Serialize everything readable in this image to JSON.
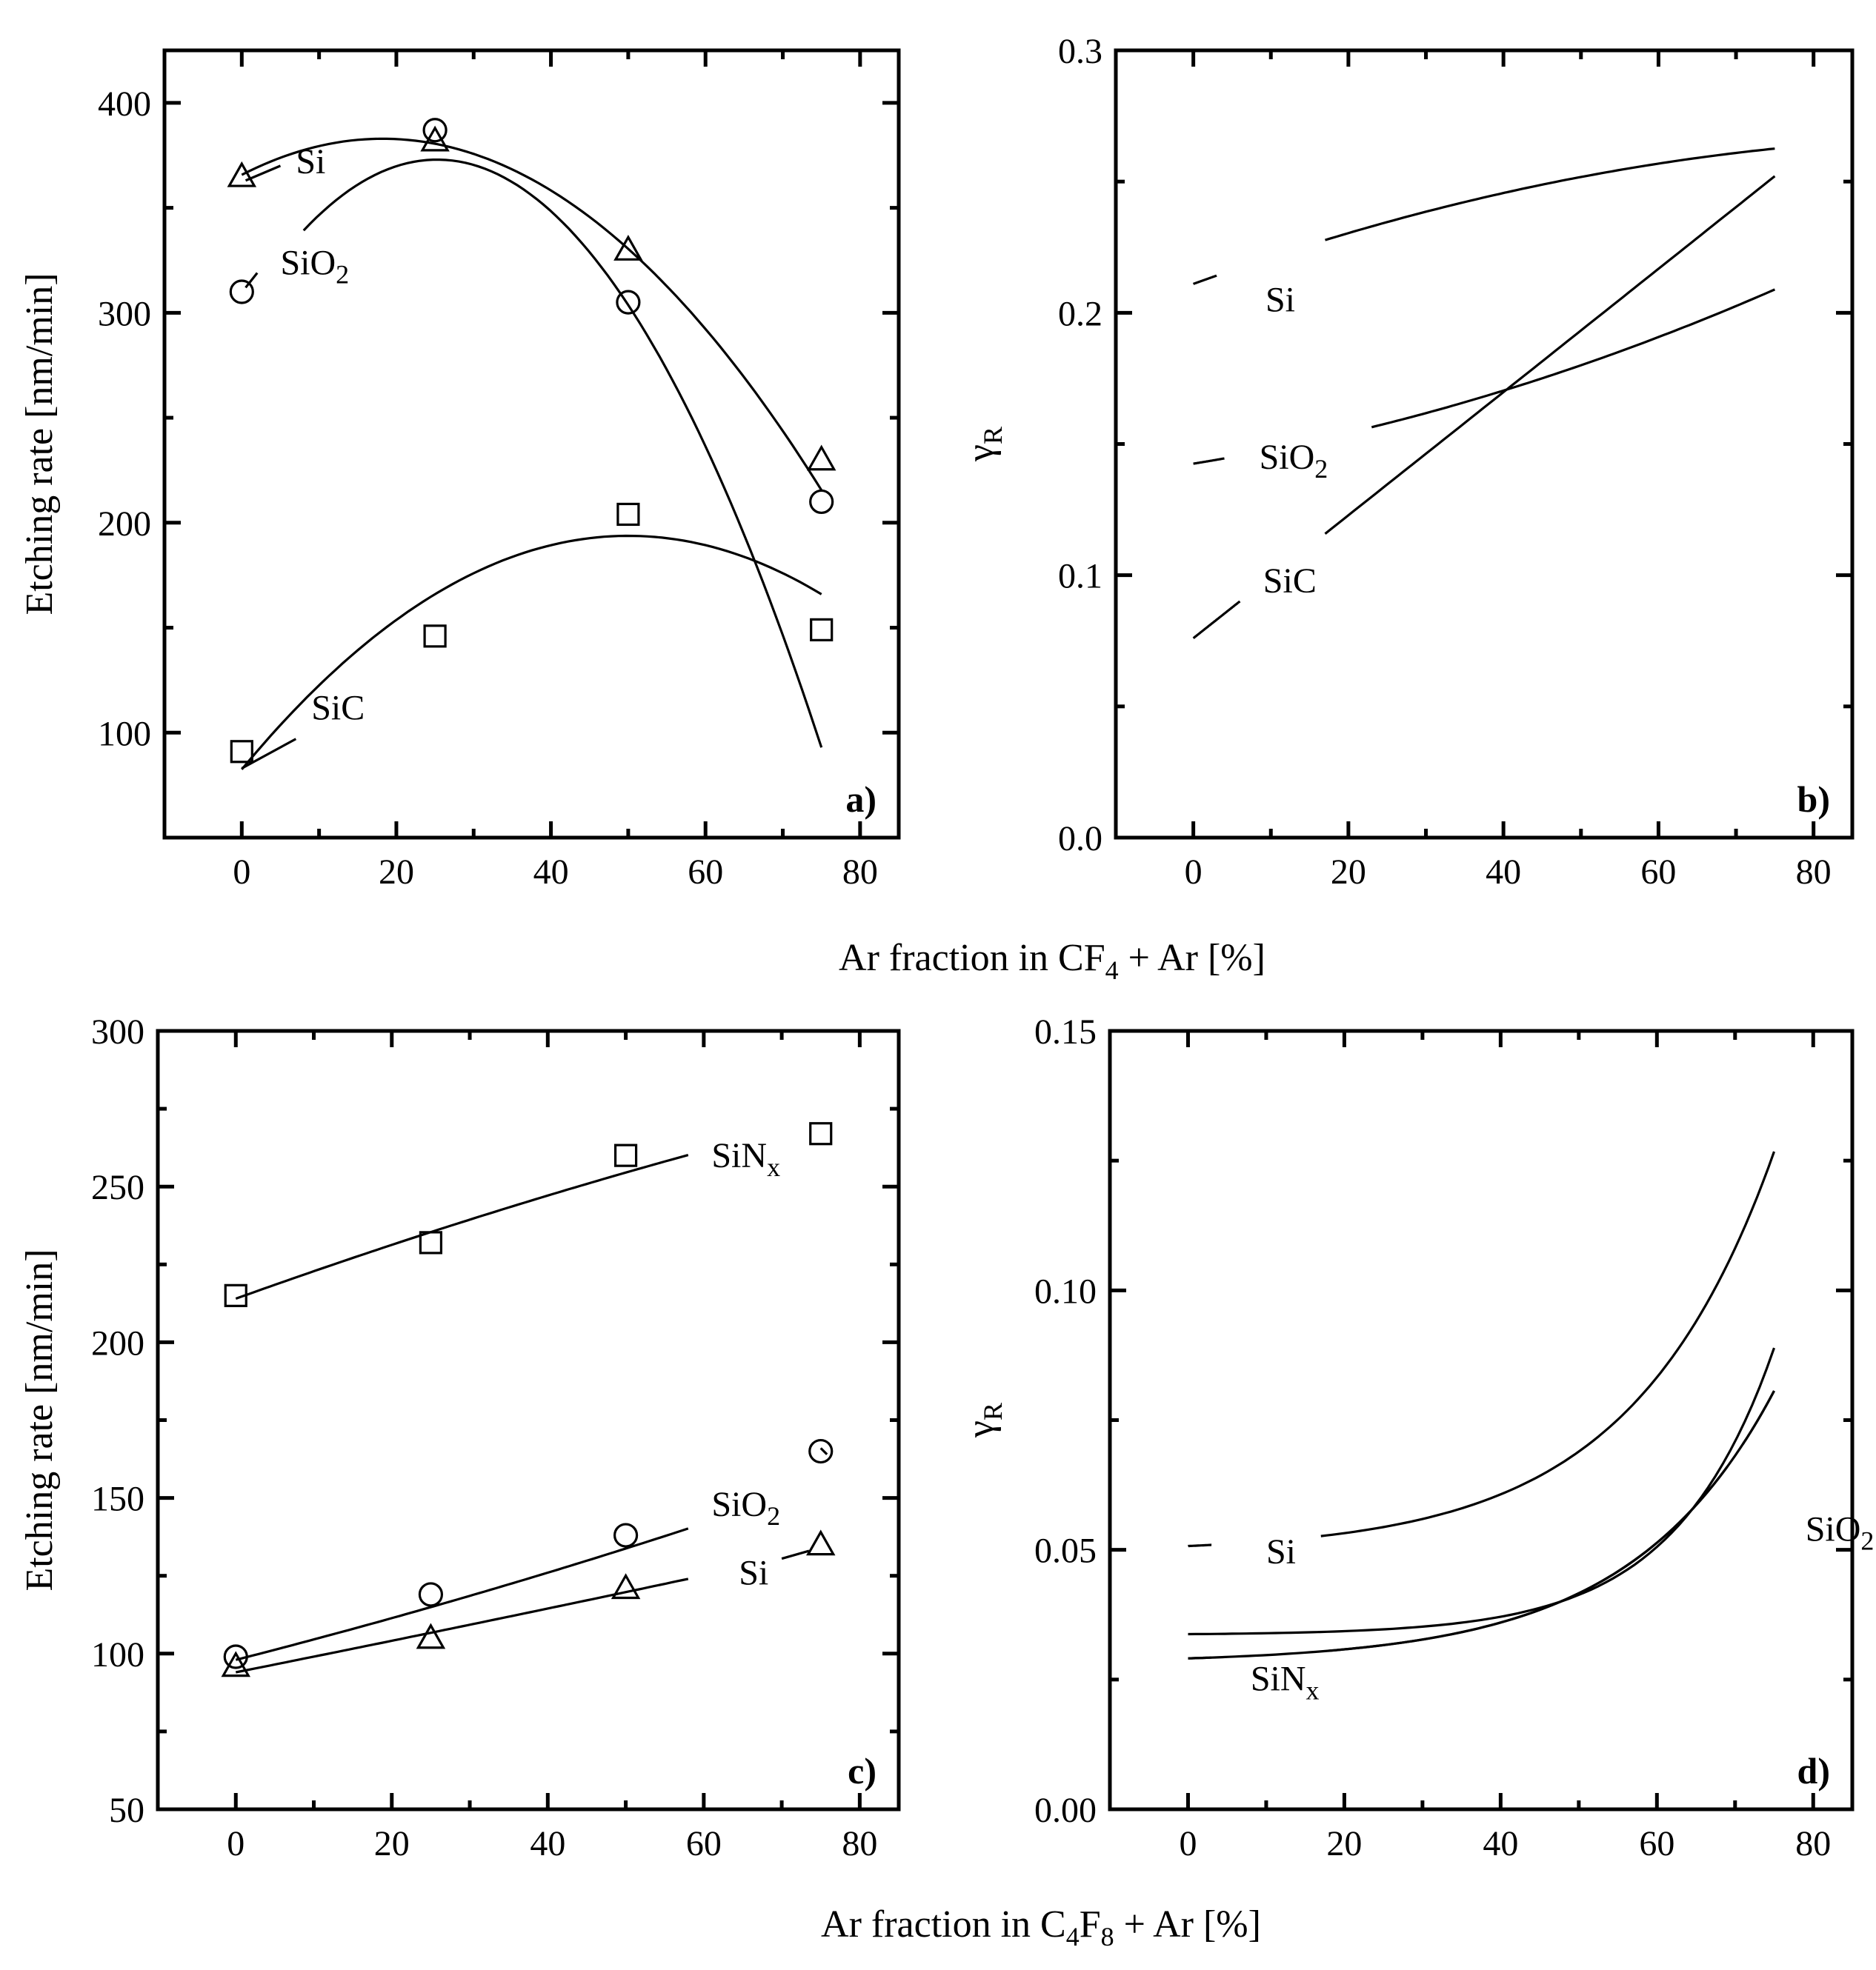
{
  "figure": {
    "bottom_xlabel_top": {
      "prefix": "Ar fraction in CF",
      "sub": "4",
      "suffix": " + Ar [%]"
    },
    "bottom_xlabel_bottom": {
      "prefix": "Ar fraction in C",
      "sub1": "4",
      "mid": "F",
      "sub2": "8",
      "suffix": " + Ar [%]"
    }
  },
  "chart_data": [
    {
      "panel": "a)",
      "type": "scatter",
      "ylabel": "Etching rate [nm/min]",
      "xlim": [
        -10,
        85
      ],
      "ylim": [
        50,
        425
      ],
      "xticks": [
        0,
        20,
        40,
        60,
        80
      ],
      "yticks": [
        100,
        200,
        300,
        400
      ],
      "xtick_labels": [
        "0",
        "20",
        "40",
        "60",
        "80"
      ],
      "ytick_labels": [
        "100",
        "200",
        "300",
        "400"
      ],
      "series": [
        {
          "name": "Si",
          "sub": "",
          "marker": "triangle",
          "x": [
            0,
            25,
            50,
            75
          ],
          "y": [
            365,
            382,
            330,
            230
          ],
          "fit_x": [
            0,
            75
          ],
          "poly": [
            365.7,
            1.89,
            -0.0519
          ],
          "label_pos": [
            7,
            372
          ],
          "leader": [
            [
              0.5,
              363
            ],
            [
              5,
              370
            ]
          ]
        },
        {
          "name": "SiO",
          "sub": "2",
          "marker": "circle",
          "x": [
            0,
            25,
            50,
            75
          ],
          "y": [
            310,
            387,
            305,
            210
          ],
          "fit_x": [
            8,
            75
          ],
          "poly": [
            300.7,
            5.72,
            -0.1132
          ],
          "label_pos": [
            5,
            324
          ],
          "leader": [
            [
              0.5,
              312
            ],
            [
              2,
              319
            ]
          ]
        },
        {
          "name": "SiC",
          "sub": "",
          "marker": "square",
          "x": [
            0,
            25,
            50,
            75
          ],
          "y": [
            91,
            146,
            204,
            149
          ],
          "fit_x": [
            0,
            75
          ],
          "poly": [
            82.5,
            4.45,
            -0.0445
          ],
          "label_pos": [
            9,
            112
          ],
          "leader": [
            [
              0,
              83
            ],
            [
              7,
              97
            ]
          ]
        }
      ]
    },
    {
      "panel": "b)",
      "type": "line",
      "ylabel": "γ",
      "ylabel_sub": "R",
      "xlim": [
        -10,
        85
      ],
      "ylim": [
        0.0,
        0.3
      ],
      "xticks": [
        0,
        20,
        40,
        60,
        80
      ],
      "yticks": [
        0.0,
        0.1,
        0.2,
        0.3
      ],
      "xtick_labels": [
        "0",
        "20",
        "40",
        "60",
        "80"
      ],
      "ytick_labels": [
        "0.0",
        "0.1",
        "0.2",
        "0.3"
      ],
      "series": [
        {
          "name": "Si",
          "sub": "",
          "x_start": 0,
          "x_end": 75,
          "gap": [
            3,
            17
          ],
          "poly": [
            0.211,
            0.00107,
            -5.1e-06
          ],
          "label_pos": [
            9.3,
            0.205
          ]
        },
        {
          "name": "SiO",
          "sub": "2",
          "x_start": 0,
          "x_end": 75,
          "gap": [
            4,
            23
          ],
          "poly": [
            0.1425,
            0.00048,
            5.4e-06
          ],
          "label_pos": [
            8.5,
            0.145
          ]
        },
        {
          "name": "SiC",
          "sub": "",
          "x_start": 0,
          "x_end": 75,
          "gap": [
            6,
            17
          ],
          "poly": [
            0.076,
            0.00234,
            1e-07
          ],
          "label_pos": [
            9,
            0.098
          ]
        }
      ]
    },
    {
      "panel": "c)",
      "type": "scatter",
      "ylabel": "Etching rate [nm/min]",
      "xlim": [
        -10,
        85
      ],
      "ylim": [
        50,
        300
      ],
      "xticks": [
        0,
        20,
        40,
        60,
        80
      ],
      "yticks": [
        50,
        100,
        150,
        200,
        250,
        300
      ],
      "xtick_labels": [
        "0",
        "20",
        "40",
        "60",
        "80"
      ],
      "ytick_labels": [
        "50",
        "100",
        "150",
        "200",
        "250",
        "300"
      ],
      "series": [
        {
          "name": "SiN",
          "sub": "x",
          "marker": "square",
          "x": [
            0,
            25,
            50,
            75
          ],
          "y": [
            215,
            232,
            260,
            267
          ],
          "fit_x": [
            0,
            58
          ],
          "poly": [
            214,
            0.9,
            -0.0018
          ],
          "label_pos": [
            61,
            260
          ],
          "leader": null
        },
        {
          "name": "SiO",
          "sub": "2",
          "marker": "circle",
          "x": [
            0,
            25,
            50,
            75
          ],
          "y": [
            99,
            119,
            138,
            165
          ],
          "fit_x": [
            0,
            58
          ],
          "poly": [
            98,
            0.64,
            0.0015
          ],
          "label_pos": [
            61,
            148
          ],
          "leader": [
            [
              75,
              166
            ],
            [
              75.8,
              164
            ]
          ]
        },
        {
          "name": "Si",
          "sub": "",
          "marker": "triangle",
          "x": [
            0,
            25,
            50,
            75
          ],
          "y": [
            96,
            105,
            121,
            135
          ],
          "fit_x": [
            0,
            58
          ],
          "poly": [
            94,
            0.5,
            0.0003
          ],
          "label_pos": [
            64.5,
            126
          ],
          "leader": [
            [
              70,
              130.5
            ],
            [
              73.5,
              133
            ]
          ]
        }
      ]
    },
    {
      "panel": "d)",
      "type": "line",
      "ylabel": "γ",
      "ylabel_sub": "R",
      "xlim": [
        -10,
        85
      ],
      "ylim": [
        0.0,
        0.15
      ],
      "xticks": [
        0,
        20,
        40,
        60,
        80
      ],
      "yticks": [
        0.0,
        0.05,
        0.1,
        0.15
      ],
      "xtick_labels": [
        "0",
        "20",
        "40",
        "60",
        "80"
      ],
      "ytick_labels": [
        "0.00",
        "0.05",
        "0.10",
        "0.15"
      ],
      "series": [
        {
          "name": "Si",
          "sub": "",
          "x_start": 0,
          "x_end": 75,
          "gap": [
            3,
            17
          ],
          "exp": [
            0.0495,
            0.00123,
            0.0552
          ],
          "label_pos": [
            10,
            0.0497
          ]
        },
        {
          "name": "",
          "sub": "",
          "x_start": 0,
          "x_end": 75,
          "gap": null,
          "exp": [
            0.0336,
            0.00015,
            0.0788
          ],
          "label_pos": null
        },
        {
          "name": "SiN",
          "sub": "x",
          "x_start": 0,
          "x_end": 75,
          "gap": [
            3,
            18
          ],
          "exp": [
            0.0282,
            0.00088,
            0.0545
          ],
          "label_pos": [
            8,
            0.0252
          ]
        },
        {
          "name": "SiO",
          "sub": "2",
          "x_start": 0,
          "x_end": 75,
          "gap": [
            69,
            71
          ],
          "exp": [
            0.0282,
            0.00088,
            0.0545
          ],
          "label_pos": [
            79,
            0.054
          ]
        }
      ]
    }
  ]
}
